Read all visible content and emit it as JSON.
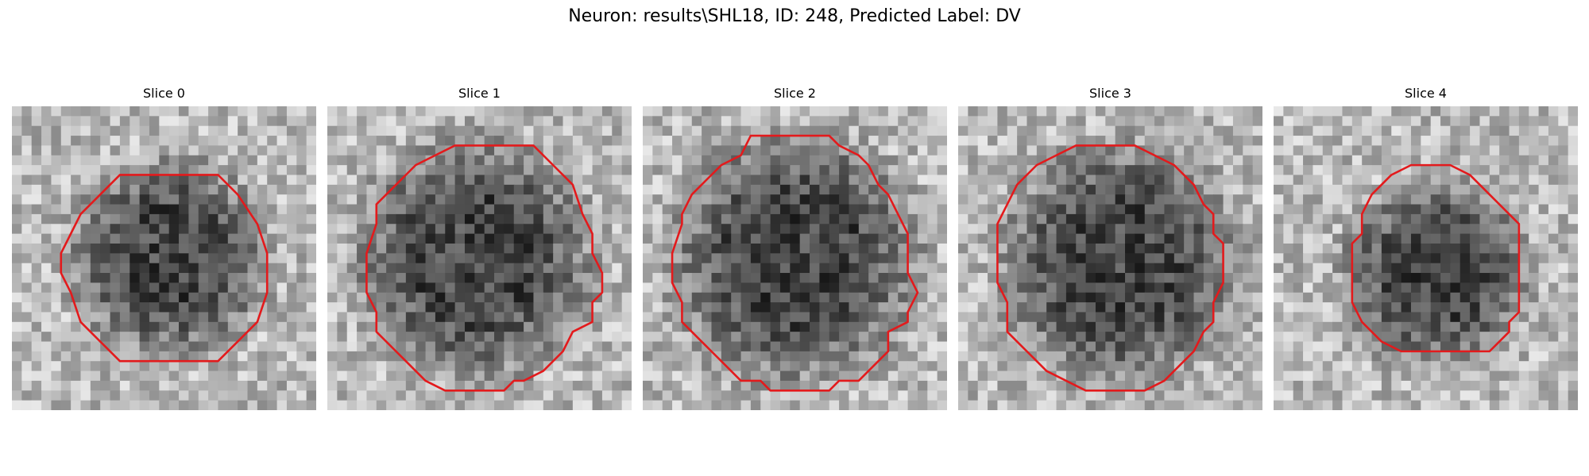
{
  "figure": {
    "title": "Neuron: results\\SHL18, ID: 248, Predicted Label: DV",
    "contour_color": "#e31a1c",
    "colormap": "gray",
    "grid_size": 31,
    "panels": [
      {
        "title": "Slice 0",
        "cell_center": [
          16,
          15.5
        ],
        "cell_radius": 9.5,
        "contour": [
          [
            12,
            7
          ],
          [
            21,
            7
          ],
          [
            23,
            9
          ],
          [
            25,
            12
          ],
          [
            26,
            15
          ],
          [
            26,
            19
          ],
          [
            25,
            22
          ],
          [
            23,
            24
          ],
          [
            21,
            26
          ],
          [
            20,
            26
          ],
          [
            11,
            26
          ],
          [
            9,
            24
          ],
          [
            7,
            22
          ],
          [
            6,
            19
          ],
          [
            5,
            17
          ],
          [
            5,
            15
          ],
          [
            6,
            13
          ],
          [
            7,
            11
          ],
          [
            9,
            9
          ],
          [
            11,
            7
          ]
        ]
      },
      {
        "title": "Slice 1",
        "cell_center": [
          15,
          15.5
        ],
        "cell_radius": 11.5,
        "contour": [
          [
            13,
            4
          ],
          [
            17,
            4
          ],
          [
            21,
            4
          ],
          [
            23,
            6
          ],
          [
            25,
            8
          ],
          [
            26,
            11
          ],
          [
            27,
            13
          ],
          [
            27,
            15
          ],
          [
            28,
            17
          ],
          [
            28,
            19
          ],
          [
            27,
            20
          ],
          [
            27,
            22
          ],
          [
            25,
            23
          ],
          [
            24,
            25
          ],
          [
            22,
            27
          ],
          [
            20,
            28
          ],
          [
            19,
            28
          ],
          [
            18,
            29
          ],
          [
            12,
            29
          ],
          [
            10,
            28
          ],
          [
            9,
            27
          ],
          [
            7,
            25
          ],
          [
            5,
            23
          ],
          [
            5,
            21
          ],
          [
            4,
            19
          ],
          [
            4,
            15
          ],
          [
            5,
            12
          ],
          [
            5,
            10
          ],
          [
            7,
            8
          ],
          [
            9,
            6
          ],
          [
            11,
            5
          ]
        ]
      },
      {
        "title": "Slice 2",
        "cell_center": [
          15.5,
          15.5
        ],
        "cell_radius": 12,
        "contour": [
          [
            11,
            3
          ],
          [
            19,
            3
          ],
          [
            20,
            4
          ],
          [
            22,
            5
          ],
          [
            23,
            6
          ],
          [
            24,
            8
          ],
          [
            25,
            9
          ],
          [
            26,
            11
          ],
          [
            27,
            13
          ],
          [
            27,
            17
          ],
          [
            28,
            19
          ],
          [
            27,
            21
          ],
          [
            27,
            22
          ],
          [
            25,
            23
          ],
          [
            25,
            25
          ],
          [
            24,
            26
          ],
          [
            23,
            27
          ],
          [
            22,
            28
          ],
          [
            20,
            28
          ],
          [
            19,
            29
          ],
          [
            13,
            29
          ],
          [
            12,
            28
          ],
          [
            10,
            28
          ],
          [
            9,
            27
          ],
          [
            8,
            26
          ],
          [
            7,
            25
          ],
          [
            6,
            24
          ],
          [
            4,
            22
          ],
          [
            4,
            20
          ],
          [
            3,
            18
          ],
          [
            3,
            15
          ],
          [
            4,
            12
          ],
          [
            4,
            11
          ],
          [
            5,
            9
          ],
          [
            6,
            8
          ],
          [
            8,
            6
          ],
          [
            10,
            5
          ]
        ]
      },
      {
        "title": "Slice 3",
        "cell_center": [
          16.5,
          16
        ],
        "cell_radius": 11.5,
        "contour": [
          [
            12,
            4
          ],
          [
            18,
            4
          ],
          [
            20,
            5
          ],
          [
            22,
            6
          ],
          [
            24,
            8
          ],
          [
            25,
            10
          ],
          [
            26,
            11
          ],
          [
            26,
            13
          ],
          [
            27,
            14
          ],
          [
            27,
            18
          ],
          [
            26,
            20
          ],
          [
            26,
            22
          ],
          [
            25,
            23
          ],
          [
            24,
            25
          ],
          [
            23,
            26
          ],
          [
            22,
            27
          ],
          [
            21,
            28
          ],
          [
            19,
            29
          ],
          [
            13,
            29
          ],
          [
            11,
            28
          ],
          [
            9,
            27
          ],
          [
            8,
            26
          ],
          [
            7,
            25
          ],
          [
            6,
            24
          ],
          [
            5,
            23
          ],
          [
            5,
            20
          ],
          [
            4,
            18
          ],
          [
            4,
            12
          ],
          [
            5,
            10
          ],
          [
            6,
            8
          ],
          [
            8,
            6
          ],
          [
            10,
            5
          ]
        ]
      },
      {
        "title": "Slice 4",
        "cell_center": [
          16.5,
          17
        ],
        "cell_radius": 9,
        "contour": [
          [
            14,
            6
          ],
          [
            18,
            6
          ],
          [
            20,
            7
          ],
          [
            22,
            9
          ],
          [
            24,
            11
          ],
          [
            25,
            12
          ],
          [
            25,
            19
          ],
          [
            25,
            21
          ],
          [
            24,
            22
          ],
          [
            24,
            23
          ],
          [
            23,
            24
          ],
          [
            22,
            25
          ],
          [
            20,
            25
          ],
          [
            18,
            25
          ],
          [
            13,
            25
          ],
          [
            11,
            24
          ],
          [
            10,
            23
          ],
          [
            9,
            22
          ],
          [
            8,
            20
          ],
          [
            8,
            17
          ],
          [
            8,
            14
          ],
          [
            9,
            13
          ],
          [
            9,
            11
          ],
          [
            10,
            9
          ],
          [
            11,
            8
          ],
          [
            12,
            7
          ]
        ]
      }
    ]
  }
}
